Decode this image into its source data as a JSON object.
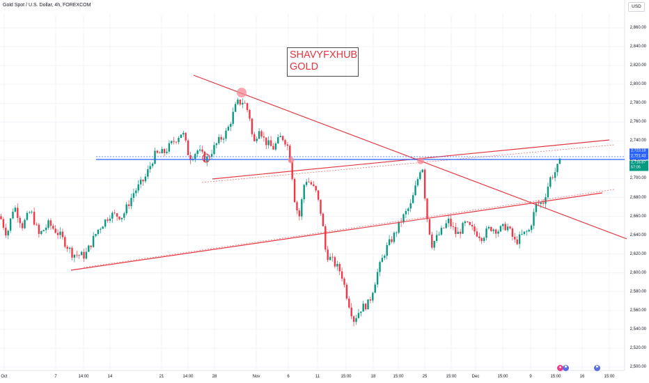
{
  "header": {
    "title": "Gold Spot / U.S. Dollar, 4h, FOREXCOM",
    "currency_button": "USD"
  },
  "watermark": {
    "line1": "SHAVYFXHUB",
    "line2": "GOLD"
  },
  "price_axis": {
    "ticks": [
      "2,860.00",
      "2,840.00",
      "2,820.00",
      "2,800.00",
      "2,780.00",
      "2,760.00",
      "2,740.00",
      "2,720.00",
      "2,700.00",
      "2,680.00",
      "2,660.00",
      "2,640.00",
      "2,620.00",
      "2,600.00",
      "2,580.00",
      "2,560.00",
      "2,540.00",
      "2,520.00",
      "2,500.00"
    ],
    "tags": {
      "blue_high": "2,723.18",
      "blue_low": "2,721.43",
      "last_price": "2,716.87",
      "countdown": "57:05"
    }
  },
  "time_axis": {
    "ticks": [
      "Oct",
      "7",
      "14:00",
      "14",
      "21",
      "14:00",
      "28",
      "Nov",
      "6",
      "11",
      "15:00",
      "18",
      "15:00",
      "25",
      "15:00",
      "Dec",
      "15:00",
      "9",
      "15:00",
      "16",
      "15:00"
    ]
  },
  "events": [
    {
      "icon": "economic-event-icon"
    },
    {
      "icon": "us-flag-icon"
    },
    {
      "icon": "us-flag-icon"
    }
  ],
  "colors": {
    "up": "#089981",
    "down": "#f23645",
    "drawing": "#e2363f",
    "hline": "#2962ff"
  },
  "chart_data": {
    "type": "candlestick",
    "symbol": "Gold Spot / U.S. Dollar",
    "interval": "4h",
    "ylim": [
      2500,
      2870
    ],
    "y_axis_side": "right",
    "close_path": [
      [
        0,
        2660
      ],
      [
        10,
        2640
      ],
      [
        20,
        2672
      ],
      [
        32,
        2650
      ],
      [
        44,
        2666
      ],
      [
        56,
        2640
      ],
      [
        70,
        2652
      ],
      [
        86,
        2640
      ],
      [
        104,
        2620
      ],
      [
        122,
        2618
      ],
      [
        140,
        2645
      ],
      [
        158,
        2662
      ],
      [
        176,
        2660
      ],
      [
        192,
        2685
      ],
      [
        208,
        2700
      ],
      [
        222,
        2725
      ],
      [
        236,
        2728
      ],
      [
        250,
        2740
      ],
      [
        262,
        2750
      ],
      [
        272,
        2722
      ],
      [
        284,
        2730
      ],
      [
        296,
        2720
      ],
      [
        312,
        2738
      ],
      [
        326,
        2750
      ],
      [
        340,
        2780
      ],
      [
        350,
        2782
      ],
      [
        358,
        2768
      ],
      [
        364,
        2735
      ],
      [
        372,
        2755
      ],
      [
        380,
        2740
      ],
      [
        392,
        2732
      ],
      [
        404,
        2745
      ],
      [
        412,
        2738
      ],
      [
        418,
        2715
      ],
      [
        424,
        2672
      ],
      [
        430,
        2660
      ],
      [
        438,
        2700
      ],
      [
        446,
        2695
      ],
      [
        454,
        2685
      ],
      [
        462,
        2660
      ],
      [
        468,
        2620
      ],
      [
        478,
        2612
      ],
      [
        490,
        2600
      ],
      [
        500,
        2570
      ],
      [
        508,
        2550
      ],
      [
        518,
        2562
      ],
      [
        530,
        2568
      ],
      [
        542,
        2600
      ],
      [
        554,
        2625
      ],
      [
        566,
        2640
      ],
      [
        578,
        2658
      ],
      [
        590,
        2672
      ],
      [
        600,
        2700
      ],
      [
        606,
        2718
      ],
      [
        612,
        2665
      ],
      [
        620,
        2630
      ],
      [
        632,
        2642
      ],
      [
        644,
        2655
      ],
      [
        656,
        2640
      ],
      [
        668,
        2652
      ],
      [
        680,
        2645
      ],
      [
        692,
        2638
      ],
      [
        704,
        2648
      ],
      [
        716,
        2645
      ],
      [
        728,
        2650
      ],
      [
        740,
        2632
      ],
      [
        750,
        2640
      ],
      [
        760,
        2645
      ],
      [
        770,
        2672
      ],
      [
        780,
        2675
      ],
      [
        790,
        2700
      ],
      [
        798,
        2708
      ],
      [
        804,
        2717
      ]
    ]
  }
}
